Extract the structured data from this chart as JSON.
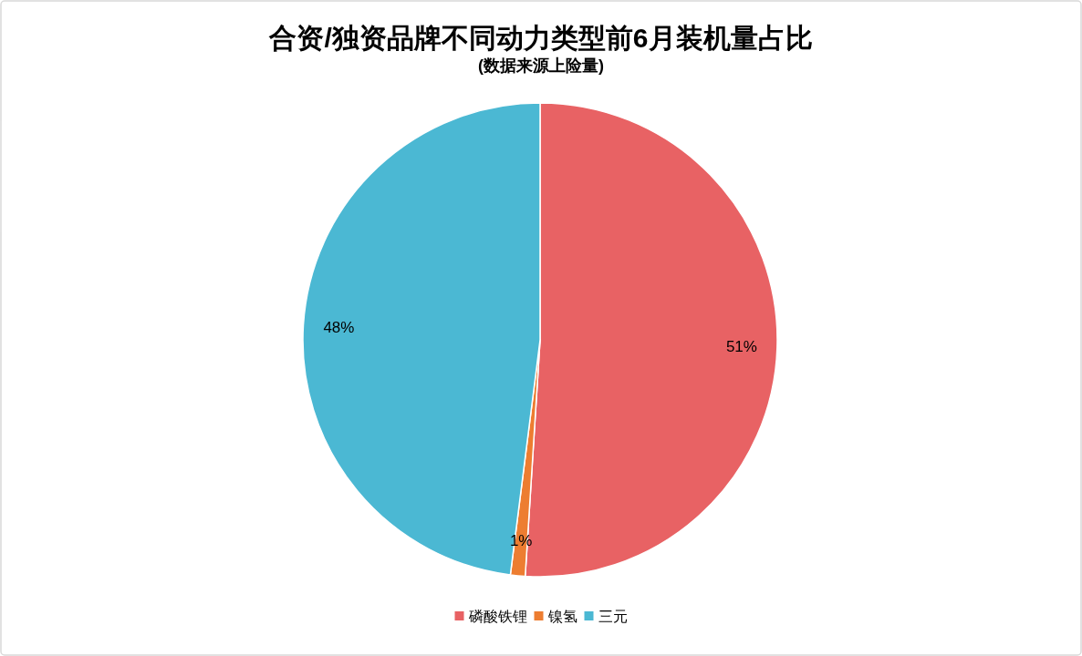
{
  "chart_data": {
    "type": "pie",
    "title": "合资/独资品牌不同动力类型前6月装机量占比",
    "subtitle": "(数据来源上险量)",
    "categories": [
      "磷酸铁锂",
      "镍氢",
      "三元"
    ],
    "values": [
      51,
      1,
      48
    ],
    "colors": [
      "#e86264",
      "#ed7d31",
      "#4bb8d3"
    ],
    "value_labels": [
      "51%",
      "1%",
      "48%"
    ],
    "legend": "bottom"
  }
}
